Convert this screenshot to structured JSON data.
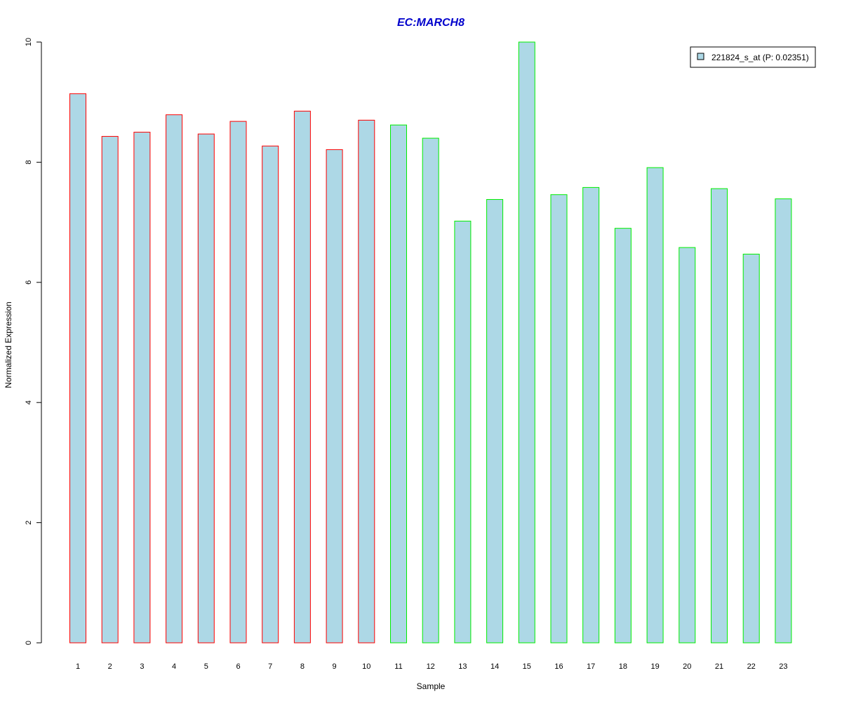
{
  "chart_data": {
    "type": "bar",
    "title": "EC:MARCH8",
    "xlabel": "Sample",
    "ylabel": "Normalized Expression",
    "ylim": [
      0,
      10
    ],
    "y_ticks": [
      "0",
      "2",
      "4",
      "6",
      "8",
      "10"
    ],
    "categories": [
      "1",
      "2",
      "3",
      "4",
      "5",
      "6",
      "7",
      "8",
      "9",
      "10",
      "11",
      "12",
      "13",
      "14",
      "15",
      "16",
      "17",
      "18",
      "19",
      "20",
      "21",
      "22",
      "23"
    ],
    "series": [
      {
        "name": "221824_s_at (P: 0.02351)",
        "values": [
          9.14,
          8.43,
          8.5,
          8.79,
          8.47,
          8.68,
          8.27,
          8.85,
          8.21,
          8.7,
          8.62,
          8.4,
          7.02,
          7.38,
          10.0,
          7.46,
          7.58,
          6.9,
          7.91,
          6.58,
          7.56,
          6.47,
          7.39
        ],
        "group": [
          "red",
          "red",
          "red",
          "red",
          "red",
          "red",
          "red",
          "red",
          "red",
          "red",
          "green",
          "green",
          "green",
          "green",
          "green",
          "green",
          "green",
          "green",
          "green",
          "green",
          "green",
          "green",
          "green"
        ]
      }
    ],
    "legend": {
      "position": "top-right",
      "label": "221824_s_at (P: 0.02351)"
    },
    "grid": false
  },
  "colors": {
    "bar_fill": "#add8e6",
    "group_red": "#ff0000",
    "group_green": "#00ee00",
    "title": "#0000cc",
    "axis": "#000000"
  }
}
